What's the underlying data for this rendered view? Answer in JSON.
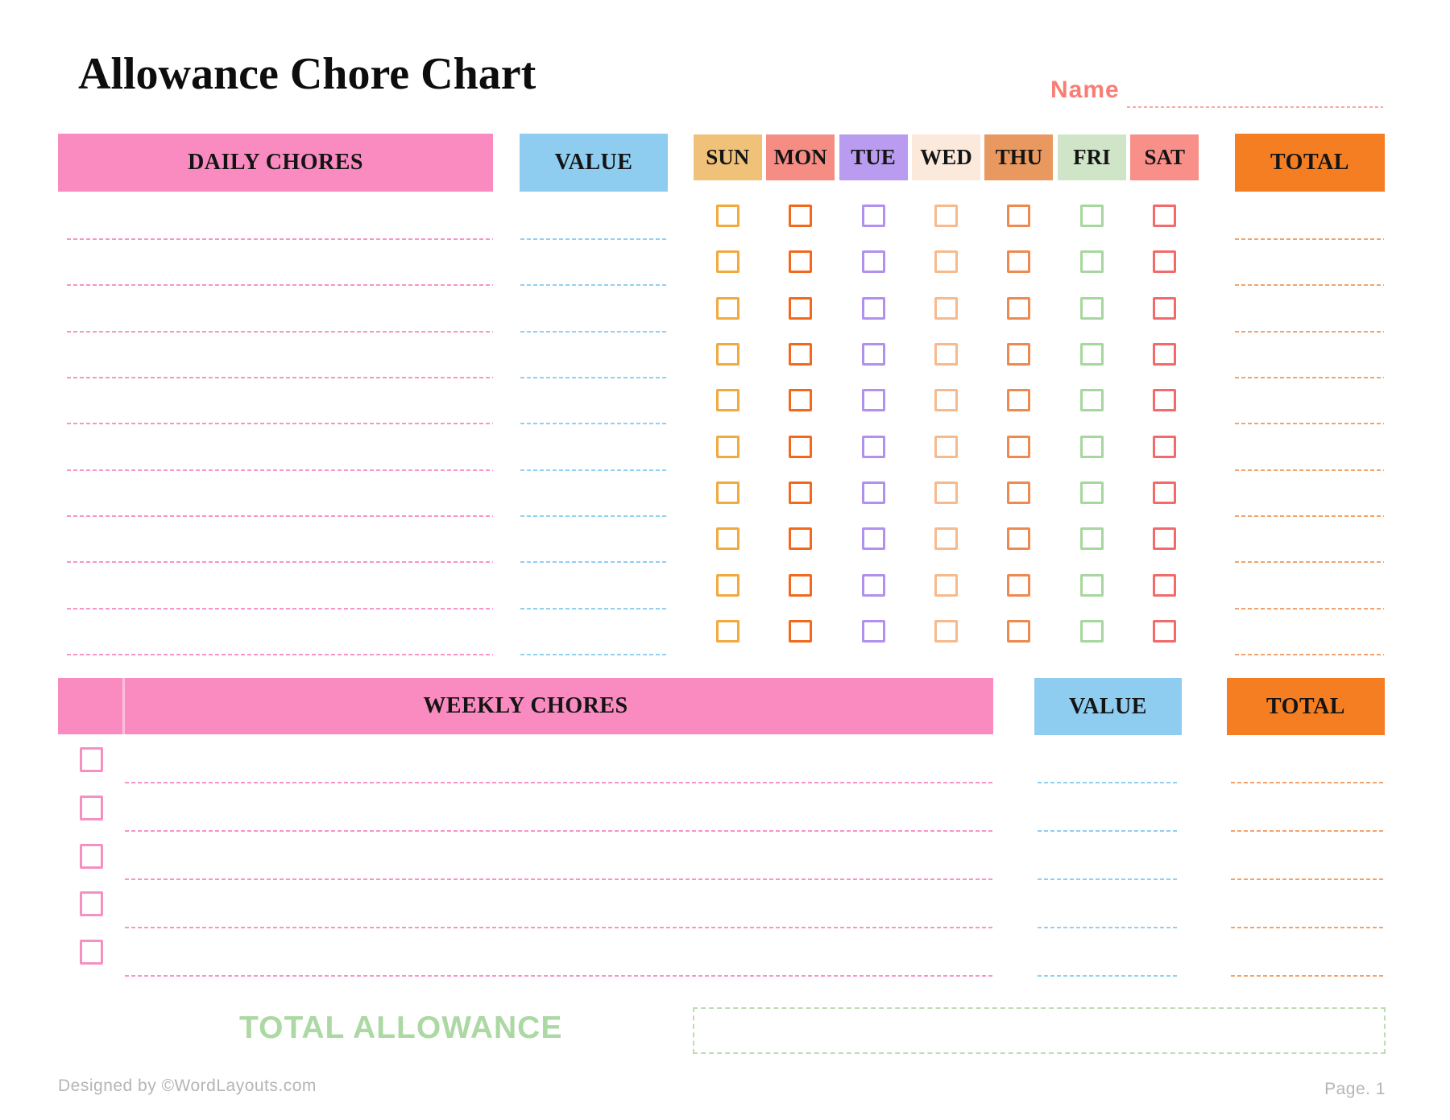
{
  "page": {
    "title": "Allowance Chore Chart"
  },
  "name_field": {
    "label": "Name",
    "value": ""
  },
  "daily": {
    "header": {
      "chores": "DAILY CHORES",
      "value": "VALUE",
      "total": "TOTAL"
    },
    "days": [
      {
        "label": "SUN",
        "header_bg": "#F0C179",
        "checkbox_border": "#F2A93E"
      },
      {
        "label": "MON",
        "header_bg": "#F68D84",
        "checkbox_border": "#F2691D"
      },
      {
        "label": "TUE",
        "header_bg": "#B99CEF",
        "checkbox_border": "#B190EE"
      },
      {
        "label": "WED",
        "header_bg": "#FBE9DC",
        "checkbox_border": "#F6BA8C"
      },
      {
        "label": "THU",
        "header_bg": "#E9995F",
        "checkbox_border": "#ED8A4F"
      },
      {
        "label": "FRI",
        "header_bg": "#D0E5C8",
        "checkbox_border": "#A6D79E"
      },
      {
        "label": "SAT",
        "header_bg": "#F88F88",
        "checkbox_border": "#F26A6A"
      }
    ],
    "row_count": 10,
    "rows_empty": true
  },
  "weekly": {
    "header": {
      "chores": "WEEKLY CHORES",
      "value": "VALUE",
      "total": "TOTAL"
    },
    "row_count": 5,
    "rows_empty": true
  },
  "summary": {
    "label": "TOTAL ALLOWANCE",
    "value": ""
  },
  "footer": {
    "credit": "Designed by ©WordLayouts.com",
    "page": "Page. 1"
  },
  "colors": {
    "pink_band": "#F98BC0",
    "blue_band": "#8ECDEF",
    "orange_band": "#F57E22",
    "pink_dash": "#F895C6",
    "blue_dash": "#90D0F0",
    "orange_dash": "#F2A36B",
    "weekly_checkbox_border": "#F590C2",
    "name_accent": "#F87E75",
    "name_dash": "#F9A9A3",
    "green_accent": "#ABD8A3",
    "green_box_border": "#BBDDB0",
    "footer_gray": "#B3B5B7"
  }
}
